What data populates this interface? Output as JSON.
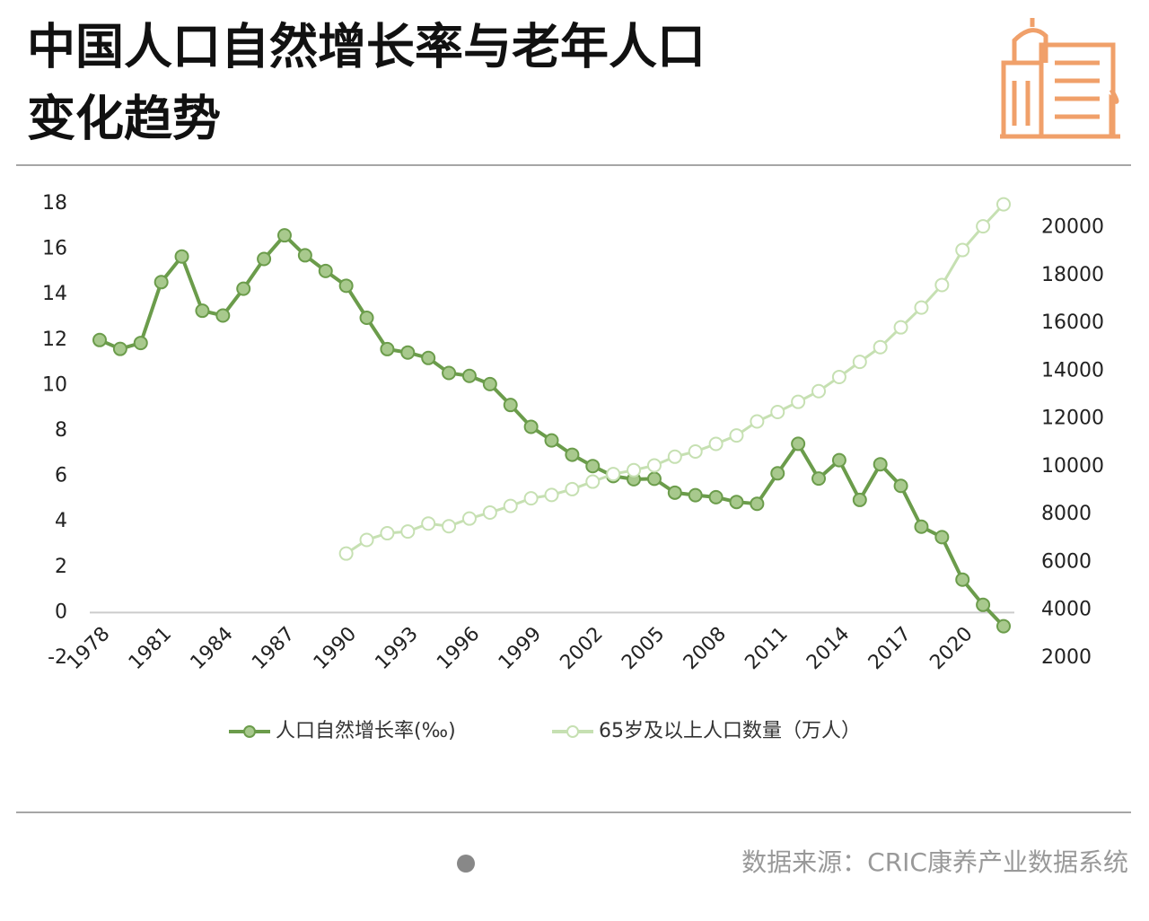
{
  "chart_data": {
    "type": "line",
    "title": "中国人口自然增长率与老年人口",
    "subtitle": "变化趋势",
    "source": "数据来源：CRIC康养产业数据系统",
    "categories": [
      "1978",
      null,
      null,
      "1981",
      null,
      null,
      "1984",
      null,
      null,
      "1987",
      null,
      null,
      "1990",
      null,
      null,
      "1993",
      null,
      null,
      "1996",
      null,
      null,
      "1999",
      null,
      null,
      "2002",
      null,
      null,
      "2005",
      null,
      null,
      "2008",
      null,
      null,
      "2011",
      null,
      null,
      "2014",
      null,
      null,
      "2017",
      null,
      null,
      "2020",
      null,
      null
    ],
    "series": [
      {
        "name": "人口自然增长率(‰)",
        "color": "#6b9c4b",
        "marker_fill": "#a8c98d",
        "values": [
          12.0,
          11.61,
          11.87,
          14.55,
          15.68,
          13.29,
          13.08,
          14.26,
          15.57,
          16.61,
          15.73,
          15.04,
          14.39,
          12.98,
          11.6,
          11.45,
          11.21,
          10.55,
          10.42,
          10.06,
          9.14,
          8.18,
          7.58,
          6.95,
          6.45,
          6.01,
          5.87,
          5.89,
          5.28,
          5.17,
          5.08,
          4.87,
          4.79,
          6.13,
          7.43,
          5.9,
          6.71,
          4.96,
          6.53,
          5.58,
          3.78,
          3.32,
          1.45,
          0.34,
          -0.6
        ]
      },
      {
        "name": "65岁及以上人口数量（万人）",
        "color": "#c6e0b2",
        "marker_fill": "#ffffff",
        "axis": "y2",
        "values": [
          null,
          null,
          null,
          null,
          null,
          null,
          null,
          null,
          null,
          null,
          null,
          null,
          6368,
          6938,
          7218,
          7289,
          7622,
          7510,
          7833,
          8085,
          8359,
          8679,
          8821,
          9062,
          9377,
          9692,
          9857,
          10055,
          10419,
          10636,
          10956,
          11307,
          11894,
          12288,
          12714,
          13161,
          13755,
          14386,
          15003,
          15831,
          16658,
          17603,
          19064,
          20056,
          20978
        ]
      }
    ],
    "ylim": [
      -2,
      18
    ],
    "yticks": [
      -2,
      0,
      2,
      4,
      6,
      8,
      10,
      12,
      14,
      16,
      18
    ],
    "y2lim": [
      2000,
      21000
    ],
    "y2ticks": [
      2000,
      4000,
      6000,
      8000,
      10000,
      12000,
      14000,
      16000,
      18000,
      20000
    ],
    "legend": "bottom"
  }
}
